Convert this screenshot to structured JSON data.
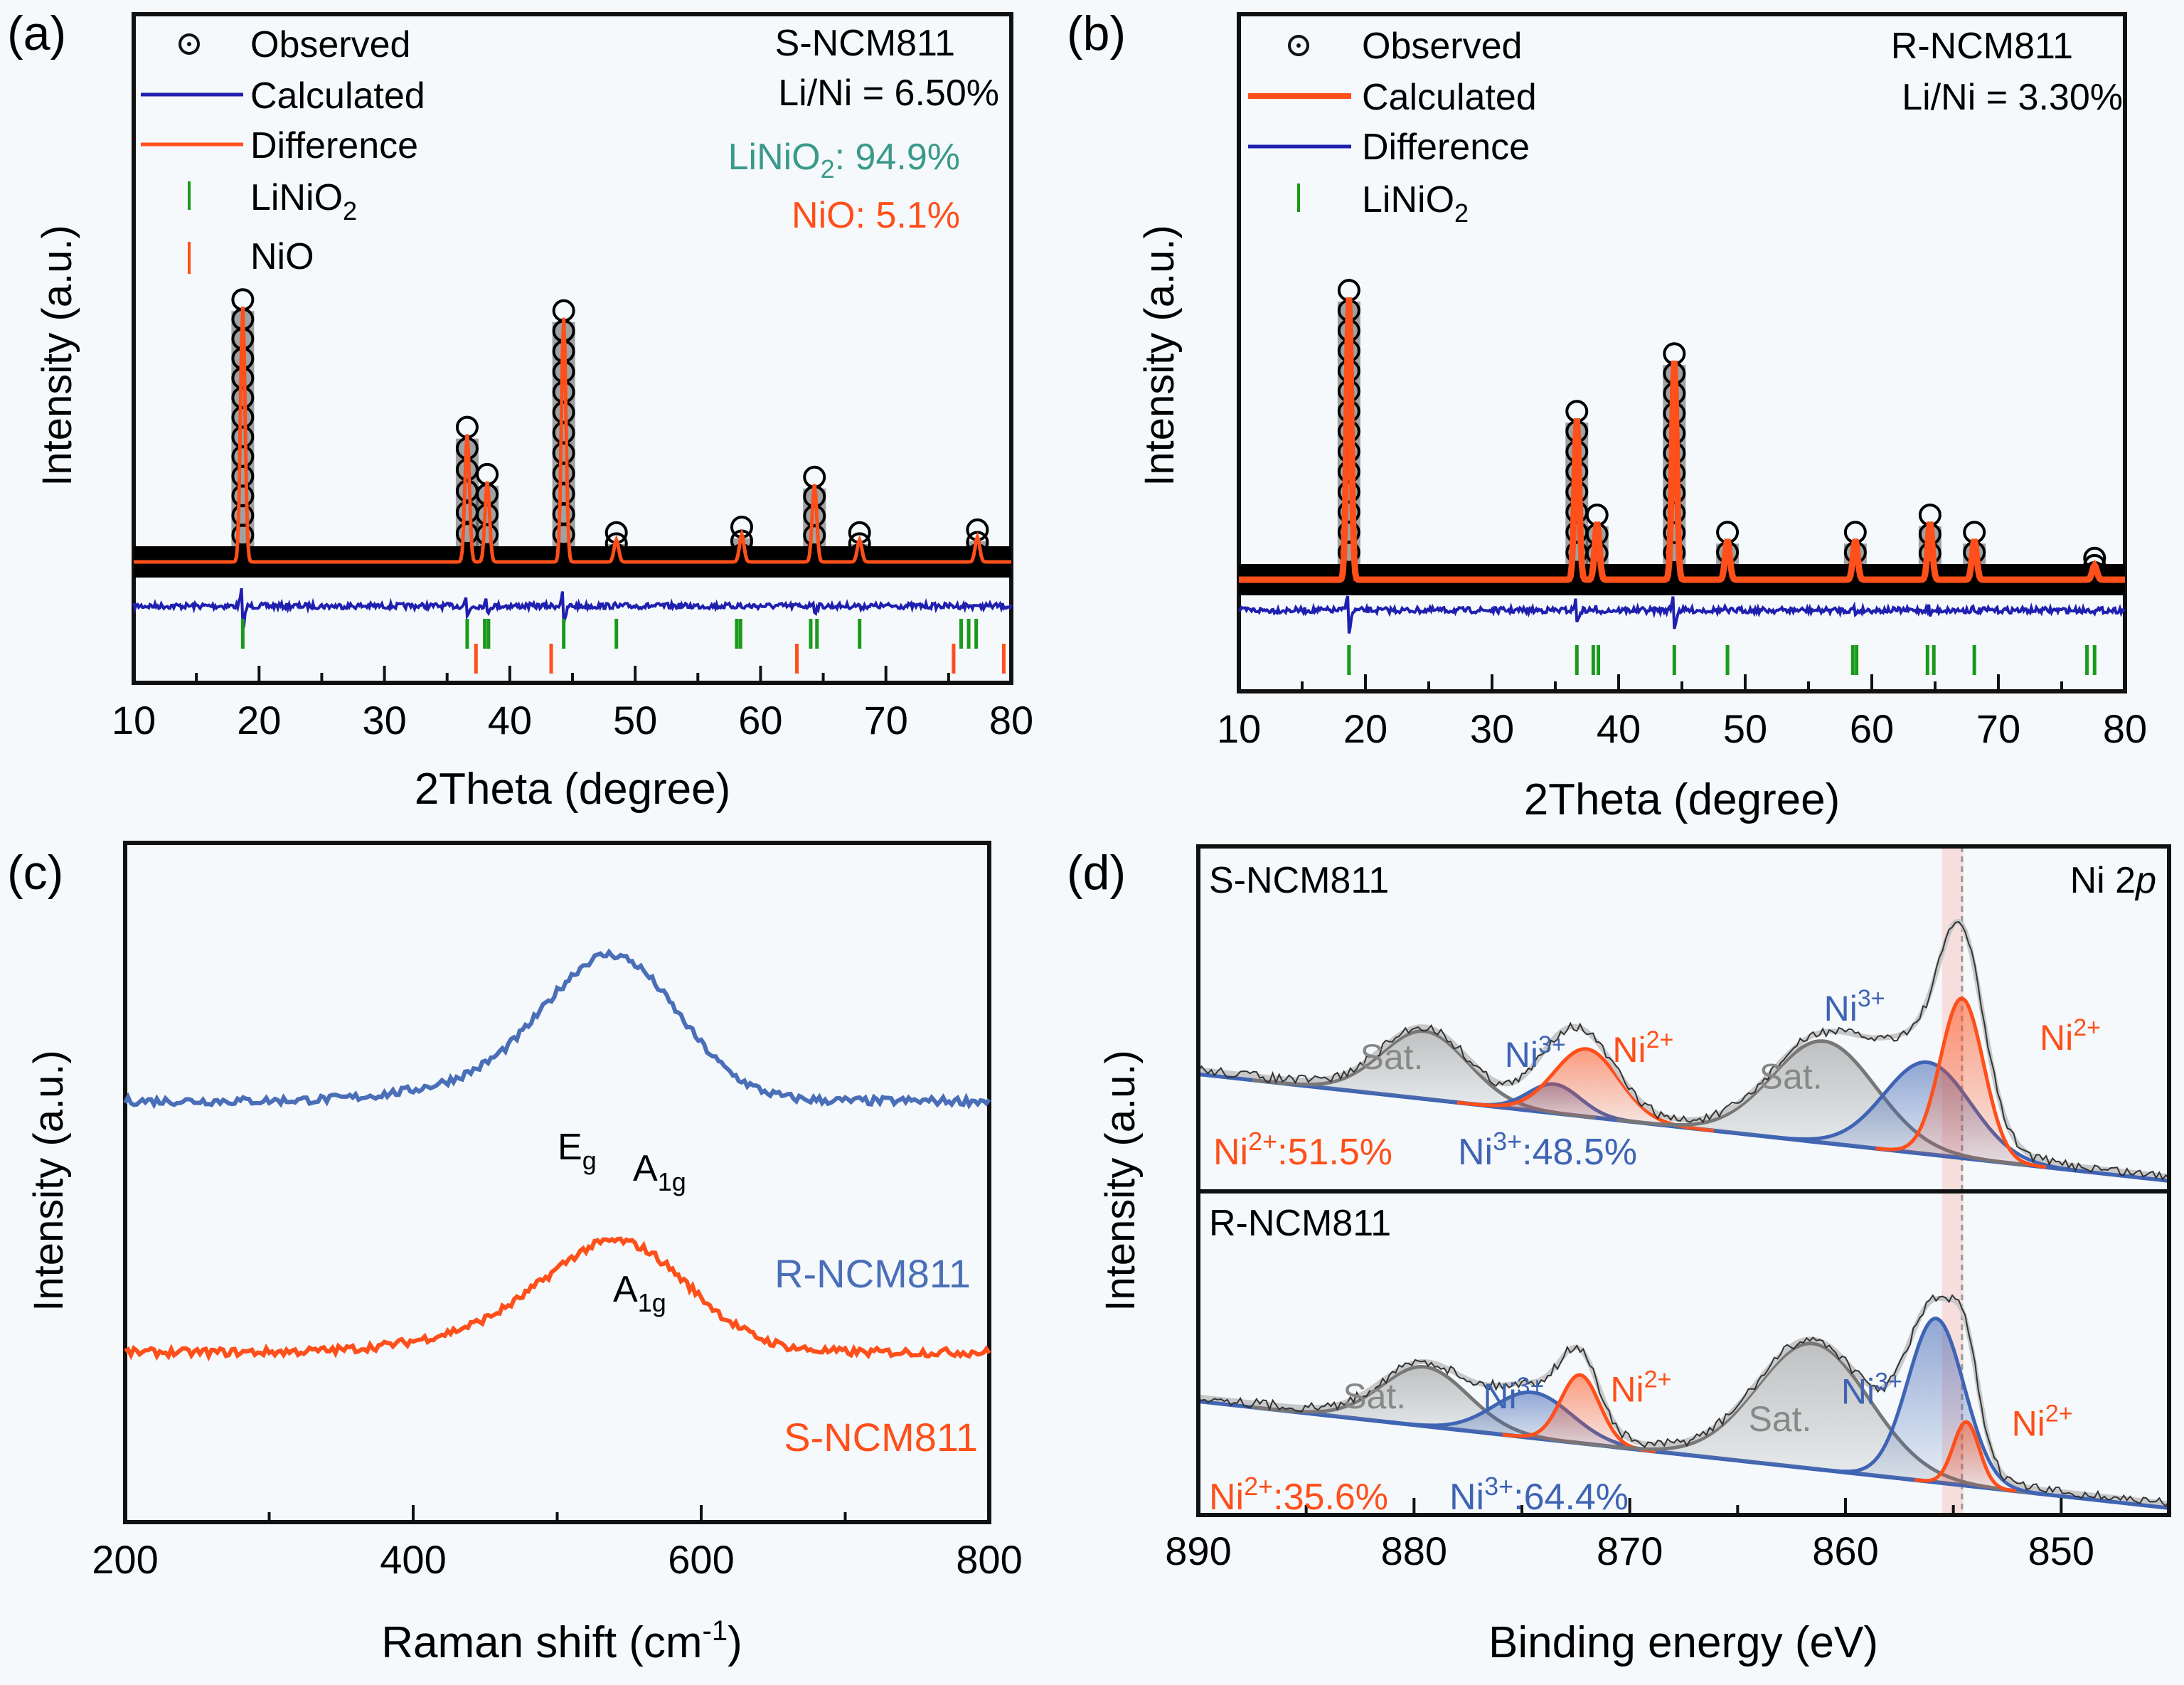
{
  "colors": {
    "observed": "#000000",
    "calc_a": "#1f1fb0",
    "diff_a": "#ff4f1a",
    "calc_b": "#ff4f1a",
    "diff_b": "#1f1fb0",
    "linio2_tick": "#1a9a1a",
    "nio_tick": "#ff4f1a",
    "teal": "#3a9a8a",
    "orange": "#ff4f1a",
    "raman_blue": "#4a6fb8",
    "ni3": "#3f64b4",
    "ni2": "#ff4f1a",
    "sat": "#888888",
    "band": "#f6c9c5"
  },
  "chart_data": [
    {
      "panel": "(a)",
      "type": "line",
      "title": "",
      "xlabel": "2Theta (degree)",
      "ylabel": "Intensity (a.u.)",
      "xlim": [
        10,
        80
      ],
      "xticks": [
        "10",
        "20",
        "30",
        "40",
        "50",
        "60",
        "70",
        "80"
      ],
      "sample": "S-NCM811",
      "annotation_lini": "Li/Ni = 6.50%",
      "phase_linio2": {
        "label_main": "LiNiO",
        "label_sub": "2",
        "value": ": 94.9%"
      },
      "phase_nio": "NiO: 5.1%",
      "legend": [
        {
          "label": "Observed",
          "marker": "circle-dot"
        },
        {
          "label": "Calculated",
          "marker": "line",
          "color_key": "calc_a"
        },
        {
          "label": "Difference",
          "marker": "line",
          "color_key": "diff_a"
        },
        {
          "label": "LiNiO",
          "sub": "2",
          "marker": "tick",
          "color_key": "linio2_tick"
        },
        {
          "label": "NiO",
          "marker": "tick",
          "color_key": "nio_tick"
        }
      ],
      "peaks": [
        {
          "x": 18.7,
          "h": 0.92
        },
        {
          "x": 36.6,
          "h": 0.46
        },
        {
          "x": 38.2,
          "h": 0.29
        },
        {
          "x": 44.3,
          "h": 0.88
        },
        {
          "x": 48.5,
          "h": 0.08
        },
        {
          "x": 58.5,
          "h": 0.1
        },
        {
          "x": 64.3,
          "h": 0.28
        },
        {
          "x": 67.9,
          "h": 0.08
        },
        {
          "x": 77.3,
          "h": 0.09
        }
      ],
      "linio2_ticks": [
        18.7,
        36.6,
        38.0,
        38.3,
        44.3,
        48.5,
        58.1,
        58.4,
        64.0,
        64.5,
        67.9,
        76.0,
        76.6,
        77.2
      ],
      "nio_ticks": [
        37.3,
        43.3,
        62.9,
        75.4,
        79.4
      ]
    },
    {
      "panel": "(b)",
      "type": "line",
      "title": "",
      "xlabel": "2Theta (degree)",
      "ylabel": "Intensity (a.u.)",
      "xlim": [
        10,
        80
      ],
      "xticks": [
        "10",
        "20",
        "30",
        "40",
        "50",
        "60",
        "70",
        "80"
      ],
      "sample": "R-NCM811",
      "annotation_lini": "Li/Ni = 3.30%",
      "legend": [
        {
          "label": "Observed",
          "marker": "circle-dot"
        },
        {
          "label": "Calculated",
          "marker": "line",
          "color_key": "calc_b"
        },
        {
          "label": "Difference",
          "marker": "line",
          "color_key": "diff_b"
        },
        {
          "label": "LiNiO",
          "sub": "2",
          "marker": "tick",
          "color_key": "linio2_tick"
        }
      ],
      "peaks": [
        {
          "x": 18.7,
          "h": 0.98
        },
        {
          "x": 36.7,
          "h": 0.56
        },
        {
          "x": 38.3,
          "h": 0.2
        },
        {
          "x": 44.4,
          "h": 0.76
        },
        {
          "x": 48.6,
          "h": 0.14
        },
        {
          "x": 58.7,
          "h": 0.14
        },
        {
          "x": 64.6,
          "h": 0.2
        },
        {
          "x": 68.1,
          "h": 0.14
        },
        {
          "x": 77.6,
          "h": 0.05
        }
      ],
      "linio2_ticks": [
        18.7,
        36.7,
        38.0,
        38.4,
        44.4,
        48.6,
        58.5,
        58.8,
        64.4,
        64.9,
        68.1,
        77.0,
        77.6
      ]
    },
    {
      "panel": "(c)",
      "type": "line",
      "xlabel_main": "Raman shift (cm",
      "xlabel_sup": "-1",
      "xlabel_end": ")",
      "ylabel": "Intensity (a.u.)",
      "xlim": [
        200,
        800
      ],
      "xticks": [
        "200",
        "400",
        "600",
        "800"
      ],
      "series": [
        {
          "name": "R-NCM811",
          "color_key": "raman_blue",
          "baseline": 0.62,
          "peak_x": 540,
          "peak_h": 0.2,
          "width": 45
        },
        {
          "name": "S-NCM811",
          "color_key": "orange",
          "baseline": 0.25,
          "peak_x": 545,
          "peak_h": 0.15,
          "width": 48
        }
      ],
      "annotations": [
        {
          "main": "E",
          "sub": "g"
        },
        {
          "main": "A",
          "sub": "1g"
        },
        {
          "main": "A",
          "sub": "1g"
        }
      ]
    },
    {
      "panel": "(d)",
      "type": "area",
      "xlabel": "Binding energy (eV)",
      "ylabel": "Intensity (a.u.)",
      "xlim": [
        890,
        845
      ],
      "xticks": [
        "890",
        "880",
        "870",
        "860",
        "850"
      ],
      "core_level": {
        "main": "Ni 2",
        "ital": "p"
      },
      "reference_line_ev": 854.6,
      "subpanels": [
        {
          "sample": "S-NCM811",
          "ni2_pct": {
            "ion": "Ni",
            "charge": "2+",
            "value": ":51.5%"
          },
          "ni3_pct": {
            "ion": "Ni",
            "charge": "3+",
            "value": ":48.5%"
          },
          "components": [
            {
              "type": "sat",
              "center": 879.5,
              "h": 0.28,
              "w": 2.0
            },
            {
              "type": "ni3",
              "center": 873.5,
              "h": 0.12,
              "w": 1.2
            },
            {
              "type": "ni2",
              "center": 872.0,
              "h": 0.28,
              "w": 1.5
            },
            {
              "type": "sat",
              "center": 861.0,
              "h": 0.42,
              "w": 2.4
            },
            {
              "type": "ni3",
              "center": 856.2,
              "h": 0.38,
              "w": 2.0
            },
            {
              "type": "ni2",
              "center": 854.6,
              "h": 0.66,
              "w": 1.0
            }
          ],
          "labels": [
            {
              "text": "Sat.",
              "charge": "",
              "type": "sat",
              "ev": 882.5,
              "h": 0.52
            },
            {
              "text": "Ni",
              "charge": "3+",
              "type": "ni3",
              "ev": 875.8,
              "h": 0.53
            },
            {
              "text": "Ni",
              "charge": "2+",
              "type": "ni2",
              "ev": 870.8,
              "h": 0.55
            },
            {
              "text": "Sat.",
              "charge": "",
              "type": "sat",
              "ev": 864.0,
              "h": 0.44
            },
            {
              "text": "Ni",
              "charge": "3+",
              "type": "ni3",
              "ev": 861.0,
              "h": 0.72
            },
            {
              "text": "Ni",
              "charge": "2+",
              "type": "ni2",
              "ev": 851.0,
              "h": 0.6
            }
          ]
        },
        {
          "sample": "R-NCM811",
          "ni2_pct": {
            "ion": "Ni",
            "charge": "2+",
            "value": ":35.6%"
          },
          "ni3_pct": {
            "ion": "Ni",
            "charge": "3+",
            "value": ":64.4%"
          },
          "components": [
            {
              "type": "sat",
              "center": 879.5,
              "h": 0.26,
              "w": 2.0
            },
            {
              "type": "ni3",
              "center": 874.5,
              "h": 0.2,
              "w": 1.8
            },
            {
              "type": "ni2",
              "center": 872.3,
              "h": 0.3,
              "w": 0.9
            },
            {
              "type": "sat",
              "center": 861.5,
              "h": 0.55,
              "w": 2.6
            },
            {
              "type": "ni3",
              "center": 855.8,
              "h": 0.72,
              "w": 1.3
            },
            {
              "type": "ni2",
              "center": 854.4,
              "h": 0.28,
              "w": 0.6
            }
          ],
          "labels": [
            {
              "text": "Sat.",
              "charge": "",
              "type": "sat",
              "ev": 883.3,
              "h": 0.5
            },
            {
              "text": "Ni",
              "charge": "3+",
              "type": "ni3",
              "ev": 876.8,
              "h": 0.5
            },
            {
              "text": "Ni",
              "charge": "2+",
              "type": "ni2",
              "ev": 870.9,
              "h": 0.53
            },
            {
              "text": "Sat.",
              "charge": "",
              "type": "sat",
              "ev": 864.5,
              "h": 0.4
            },
            {
              "text": "Ni",
              "charge": "3+",
              "type": "ni3",
              "ev": 860.2,
              "h": 0.52
            },
            {
              "text": "Ni",
              "charge": "2+",
              "type": "ni2",
              "ev": 852.3,
              "h": 0.38
            }
          ]
        }
      ]
    }
  ]
}
